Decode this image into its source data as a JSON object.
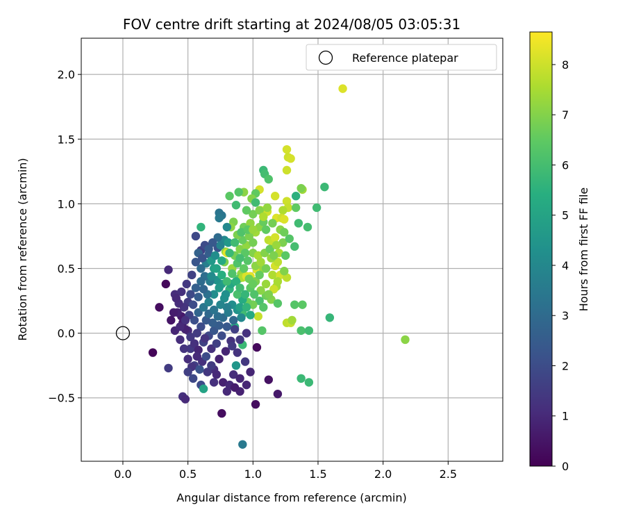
{
  "chart_data": {
    "type": "scatter",
    "title": "FOV centre drift starting at 2024/08/05 03:05:31",
    "xlabel": "Angular distance from reference (arcmin)",
    "ylabel": "Rotation from reference (arcmin)",
    "xlim": [
      -0.32,
      2.92
    ],
    "ylim": [
      -0.99,
      2.28
    ],
    "xticks": [
      "0.0",
      "0.5",
      "1.0",
      "1.5",
      "2.0",
      "2.5"
    ],
    "xtick_values": [
      0,
      0.5,
      1.0,
      1.5,
      2.0,
      2.5
    ],
    "yticks": [
      "−0.5",
      "0.0",
      "0.5",
      "1.0",
      "1.5",
      "2.0"
    ],
    "ytick_values": [
      -0.5,
      0,
      0.5,
      1.0,
      1.5,
      2.0
    ],
    "grid": true,
    "legend": {
      "position": "top-right",
      "label": "Reference platepar"
    },
    "reference_point": {
      "x": 0.0,
      "y": 0.0
    },
    "colorbar": {
      "label": "Hours from first FF file",
      "range": [
        0,
        8.65
      ],
      "ticks": [
        "0",
        "1",
        "2",
        "3",
        "4",
        "5",
        "6",
        "7",
        "8"
      ],
      "tick_values": [
        0,
        1,
        2,
        3,
        4,
        5,
        6,
        7,
        8
      ],
      "colormap": "viridis"
    },
    "points": [
      [
        0.23,
        -0.15,
        0.1
      ],
      [
        0.33,
        0.38,
        0.2
      ],
      [
        0.28,
        0.2,
        0.3
      ],
      [
        0.35,
        0.49,
        1.0
      ],
      [
        0.35,
        -0.27,
        1.5
      ],
      [
        0.46,
        -0.49,
        1.2
      ],
      [
        0.48,
        -0.51,
        1.0
      ],
      [
        0.4,
        0.3,
        1.1
      ],
      [
        0.45,
        0.13,
        0.6
      ],
      [
        0.5,
        0.02,
        1.0
      ],
      [
        0.52,
        -0.12,
        1.4
      ],
      [
        0.55,
        -0.25,
        1.6
      ],
      [
        0.6,
        -0.4,
        2.0
      ],
      [
        0.62,
        -0.43,
        5.0
      ],
      [
        0.7,
        -0.38,
        1.2
      ],
      [
        0.76,
        -0.62,
        0.3
      ],
      [
        0.8,
        -0.45,
        1.0
      ],
      [
        0.85,
        -0.32,
        1.1
      ],
      [
        0.87,
        -0.25,
        4.5
      ],
      [
        0.9,
        -0.45,
        0.8
      ],
      [
        0.92,
        -0.86,
        3.5
      ],
      [
        0.95,
        -0.4,
        0.9
      ],
      [
        1.02,
        -0.55,
        0.3
      ],
      [
        1.12,
        -0.36,
        0.4
      ],
      [
        1.19,
        -0.47,
        0.6
      ],
      [
        1.03,
        -0.11,
        0.2
      ],
      [
        0.92,
        -0.09,
        5.8
      ],
      [
        0.86,
        0.05,
        5.4
      ],
      [
        0.92,
        0.15,
        5.9
      ],
      [
        1.04,
        0.13,
        7.9
      ],
      [
        1.07,
        0.02,
        6.3
      ],
      [
        1.26,
        0.08,
        7.8
      ],
      [
        1.29,
        0.08,
        7.9
      ],
      [
        1.3,
        0.1,
        7.4
      ],
      [
        1.37,
        0.02,
        6.1
      ],
      [
        1.43,
        0.02,
        5.9
      ],
      [
        1.59,
        0.12,
        5.7
      ],
      [
        1.37,
        -0.35,
        5.8
      ],
      [
        1.43,
        -0.38,
        5.8
      ],
      [
        1.69,
        1.89,
        8.2
      ],
      [
        2.17,
        -0.05,
        7.1
      ],
      [
        1.55,
        1.13,
        5.8
      ],
      [
        1.49,
        0.97,
        5.9
      ],
      [
        1.32,
        0.67,
        6.0
      ],
      [
        1.38,
        0.22,
        6.4
      ],
      [
        1.32,
        0.22,
        6.3
      ],
      [
        1.26,
        1.42,
        8.1
      ],
      [
        1.27,
        1.36,
        8.0
      ],
      [
        1.29,
        1.35,
        8.1
      ],
      [
        1.26,
        1.26,
        8.0
      ],
      [
        1.38,
        1.11,
        7.4
      ],
      [
        1.37,
        1.12,
        6.9
      ],
      [
        1.33,
        1.06,
        5.5
      ],
      [
        1.26,
        1.02,
        8.0
      ],
      [
        1.27,
        0.97,
        7.9
      ],
      [
        1.23,
        0.95,
        7.6
      ],
      [
        1.18,
        0.89,
        8.2
      ],
      [
        1.22,
        0.89,
        8.0
      ],
      [
        1.24,
        0.88,
        8.2
      ],
      [
        1.17,
        1.06,
        8.1
      ],
      [
        1.08,
        1.26,
        5.8
      ],
      [
        1.09,
        1.23,
        6.0
      ],
      [
        1.05,
        1.11,
        8.1
      ],
      [
        1.06,
        0.95,
        8.2
      ],
      [
        1.11,
        0.94,
        8.0
      ],
      [
        1.02,
        1.08,
        6.5
      ],
      [
        0.99,
        1.04,
        7.0
      ],
      [
        0.93,
        1.09,
        7.1
      ],
      [
        0.89,
        1.09,
        6.3
      ],
      [
        0.87,
        0.99,
        5.9
      ],
      [
        0.82,
        1.06,
        6.4
      ],
      [
        0.85,
        0.86,
        6.9
      ],
      [
        0.83,
        0.82,
        7.1
      ],
      [
        0.76,
        0.91,
        3.4
      ],
      [
        0.74,
        0.93,
        3.3
      ],
      [
        0.74,
        0.89,
        3.5
      ],
      [
        0.6,
        0.82,
        5.6
      ],
      [
        0.56,
        0.75,
        1.9
      ],
      [
        0.6,
        0.64,
        1.6
      ],
      [
        0.58,
        0.62,
        2.7
      ],
      [
        0.66,
        0.61,
        2.6
      ],
      [
        0.73,
        0.66,
        2.2
      ],
      [
        0.78,
        0.72,
        4.0
      ],
      [
        0.8,
        0.82,
        4.0
      ],
      [
        0.79,
        0.63,
        7.2
      ],
      [
        0.8,
        0.62,
        8.3
      ],
      [
        0.78,
        0.55,
        6.9
      ],
      [
        0.84,
        0.5,
        7.3
      ],
      [
        0.91,
        0.46,
        7.2
      ],
      [
        0.89,
        0.42,
        6.5
      ],
      [
        0.92,
        0.43,
        7.6
      ],
      [
        0.95,
        0.44,
        8.2
      ],
      [
        0.98,
        0.44,
        8.3
      ],
      [
        1.03,
        0.49,
        8.2
      ],
      [
        1.08,
        0.5,
        7.3
      ],
      [
        1.15,
        0.45,
        7.6
      ],
      [
        1.17,
        0.52,
        8.1
      ],
      [
        1.19,
        0.55,
        7.8
      ],
      [
        1.21,
        0.45,
        8.1
      ],
      [
        1.19,
        0.4,
        7.5
      ],
      [
        1.26,
        0.43,
        7.8
      ],
      [
        1.24,
        0.48,
        7.0
      ],
      [
        1.18,
        0.36,
        7.5
      ],
      [
        1.16,
        0.34,
        8.0
      ],
      [
        1.14,
        0.26,
        7.0
      ],
      [
        1.19,
        0.23,
        6.3
      ],
      [
        1.1,
        0.29,
        6.7
      ],
      [
        1.05,
        0.25,
        6.1
      ],
      [
        1.0,
        0.22,
        6.8
      ],
      [
        0.96,
        0.24,
        6.7
      ],
      [
        0.92,
        0.26,
        5.3
      ],
      [
        0.88,
        0.3,
        6.1
      ],
      [
        0.82,
        0.34,
        5.6
      ],
      [
        0.76,
        0.38,
        4.8
      ],
      [
        0.72,
        0.41,
        4.4
      ],
      [
        0.67,
        0.4,
        3.6
      ],
      [
        0.63,
        0.44,
        3.1
      ],
      [
        0.6,
        0.4,
        3.0
      ],
      [
        0.56,
        0.35,
        2.6
      ],
      [
        0.52,
        0.3,
        1.9
      ],
      [
        0.5,
        0.24,
        1.5
      ],
      [
        0.47,
        0.2,
        1.3
      ],
      [
        0.43,
        0.23,
        1.1
      ],
      [
        0.42,
        0.16,
        0.8
      ],
      [
        0.46,
        0.08,
        0.7
      ],
      [
        0.48,
        0.03,
        0.8
      ],
      [
        0.52,
        -0.03,
        1.4
      ],
      [
        0.55,
        -0.08,
        1.2
      ],
      [
        0.58,
        -0.13,
        0.9
      ],
      [
        0.62,
        -0.07,
        1.7
      ],
      [
        0.66,
        -0.02,
        1.9
      ],
      [
        0.7,
        0.02,
        2.3
      ],
      [
        0.74,
        0.06,
        2.5
      ],
      [
        0.77,
        0.12,
        3.0
      ],
      [
        0.81,
        0.16,
        3.6
      ],
      [
        0.84,
        0.22,
        4.2
      ],
      [
        0.88,
        0.18,
        4.4
      ],
      [
        0.91,
        0.12,
        4.0
      ],
      [
        0.86,
        0.03,
        1.6
      ],
      [
        0.83,
        -0.06,
        1.3
      ],
      [
        0.79,
        -0.14,
        0.9
      ],
      [
        0.74,
        -0.2,
        0.8
      ],
      [
        0.7,
        -0.28,
        1.1
      ],
      [
        0.65,
        -0.3,
        1.4
      ],
      [
        0.61,
        -0.22,
        1.2
      ],
      [
        0.57,
        -0.18,
        1.0
      ],
      [
        0.53,
        -0.26,
        1.3
      ],
      [
        0.5,
        -0.2,
        1.1
      ],
      [
        0.55,
        0.1,
        2.1
      ],
      [
        0.58,
        0.16,
        2.8
      ],
      [
        0.62,
        0.2,
        3.4
      ],
      [
        0.66,
        0.24,
        3.8
      ],
      [
        0.7,
        0.3,
        4.2
      ],
      [
        0.74,
        0.35,
        4.6
      ],
      [
        0.78,
        0.27,
        4.3
      ],
      [
        0.8,
        0.2,
        3.7
      ],
      [
        0.73,
        0.13,
        3.1
      ],
      [
        0.69,
        0.08,
        2.6
      ],
      [
        0.64,
        0.1,
        2.4
      ],
      [
        0.6,
        0.05,
        2.0
      ],
      [
        0.57,
        0.0,
        1.5
      ],
      [
        0.63,
        -0.04,
        1.3
      ],
      [
        0.68,
        -0.12,
        1.2
      ],
      [
        0.72,
        -0.08,
        1.6
      ],
      [
        0.76,
        -0.02,
        2.0
      ],
      [
        0.8,
        0.05,
        2.4
      ],
      [
        0.85,
        0.1,
        2.9
      ],
      [
        0.9,
        0.2,
        4.9
      ],
      [
        0.94,
        0.3,
        5.7
      ],
      [
        0.98,
        0.35,
        6.4
      ],
      [
        1.02,
        0.4,
        6.9
      ],
      [
        1.06,
        0.33,
        7.1
      ],
      [
        1.1,
        0.38,
        7.3
      ],
      [
        1.12,
        0.3,
        6.9
      ],
      [
        1.08,
        0.2,
        6.3
      ],
      [
        1.01,
        0.3,
        6.2
      ],
      [
        0.97,
        0.42,
        6.7
      ],
      [
        0.93,
        0.5,
        6.5
      ],
      [
        0.88,
        0.54,
        6.2
      ],
      [
        0.86,
        0.6,
        6.8
      ],
      [
        0.9,
        0.65,
        7.0
      ],
      [
        0.95,
        0.68,
        7.2
      ],
      [
        1.0,
        0.62,
        7.0
      ],
      [
        1.04,
        0.6,
        7.5
      ],
      [
        1.0,
        0.7,
        6.8
      ],
      [
        1.02,
        0.78,
        7.4
      ],
      [
        1.05,
        0.82,
        7.1
      ],
      [
        1.08,
        0.86,
        6.6
      ],
      [
        1.12,
        0.72,
        7.8
      ],
      [
        1.15,
        0.7,
        7.9
      ],
      [
        1.17,
        0.74,
        8.1
      ],
      [
        1.2,
        0.62,
        7.5
      ],
      [
        1.23,
        0.7,
        6.9
      ],
      [
        1.25,
        0.6,
        6.4
      ],
      [
        1.28,
        0.73,
        6.3
      ],
      [
        1.14,
        0.58,
        7.3
      ],
      [
        1.1,
        0.5,
        6.8
      ],
      [
        1.05,
        0.45,
        6.6
      ],
      [
        0.96,
        0.56,
        6.3
      ],
      [
        0.92,
        0.72,
        6.6
      ],
      [
        0.88,
        0.76,
        6.9
      ],
      [
        0.93,
        0.82,
        6.7
      ],
      [
        0.98,
        0.85,
        7.2
      ],
      [
        1.0,
        0.92,
        6.8
      ],
      [
        1.05,
        0.95,
        7.0
      ],
      [
        1.11,
        0.97,
        7.2
      ],
      [
        1.08,
        0.9,
        7.6
      ],
      [
        1.35,
        0.85,
        5.9
      ],
      [
        1.42,
        0.82,
        6.0
      ],
      [
        1.33,
        0.97,
        6.5
      ],
      [
        1.12,
        1.19,
        6.2
      ],
      [
        1.02,
        1.01,
        5.9
      ],
      [
        0.95,
        0.95,
        6.5
      ],
      [
        0.82,
        0.62,
        5.8
      ],
      [
        0.76,
        0.56,
        5.2
      ],
      [
        0.7,
        0.5,
        4.9
      ],
      [
        0.68,
        0.44,
        4.1
      ],
      [
        0.64,
        0.54,
        3.7
      ],
      [
        0.6,
        0.5,
        3.0
      ],
      [
        0.56,
        0.55,
        2.3
      ],
      [
        0.53,
        0.45,
        1.7
      ],
      [
        0.49,
        0.38,
        1.4
      ],
      [
        0.45,
        0.32,
        1.2
      ],
      [
        0.41,
        0.27,
        1.0
      ],
      [
        0.39,
        0.16,
        0.7
      ],
      [
        0.37,
        0.1,
        0.5
      ],
      [
        0.4,
        0.02,
        0.9
      ],
      [
        0.44,
        -0.05,
        1.1
      ],
      [
        0.47,
        -0.12,
        1.3
      ],
      [
        0.5,
        -0.3,
        1.6
      ],
      [
        0.54,
        -0.35,
        1.9
      ],
      [
        0.59,
        -0.28,
        2.2
      ],
      [
        0.64,
        -0.18,
        2.0
      ],
      [
        0.68,
        -0.25,
        1.5
      ],
      [
        0.72,
        -0.32,
        1.0
      ],
      [
        0.77,
        -0.38,
        0.8
      ],
      [
        0.82,
        -0.4,
        1.0
      ],
      [
        0.86,
        -0.42,
        0.7
      ],
      [
        0.9,
        -0.35,
        0.9
      ],
      [
        0.88,
        -0.15,
        1.3
      ],
      [
        0.84,
        -0.1,
        1.5
      ],
      [
        0.9,
        -0.05,
        1.4
      ],
      [
        0.95,
        0.0,
        1.2
      ],
      [
        0.98,
        -0.3,
        0.9
      ],
      [
        0.94,
        -0.22,
        1.4
      ],
      [
        0.65,
        0.3,
        3.2
      ],
      [
        0.62,
        0.34,
        2.8
      ],
      [
        0.58,
        0.28,
        2.5
      ],
      [
        0.54,
        0.22,
        2.0
      ],
      [
        0.51,
        0.14,
        1.7
      ],
      [
        0.48,
        0.1,
        1.2
      ],
      [
        0.44,
        0.05,
        1.0
      ],
      [
        0.66,
        0.15,
        2.9
      ],
      [
        0.7,
        0.18,
        3.3
      ],
      [
        0.75,
        0.22,
        3.9
      ],
      [
        0.79,
        0.3,
        4.3
      ],
      [
        0.83,
        0.38,
        5.1
      ],
      [
        0.87,
        0.4,
        5.5
      ],
      [
        0.9,
        0.35,
        5.9
      ],
      [
        0.95,
        0.2,
        5.6
      ],
      [
        0.98,
        0.14,
        5.2
      ],
      [
        1.0,
        0.38,
        6.6
      ],
      [
        1.02,
        0.52,
        7.1
      ],
      [
        1.06,
        0.55,
        7.4
      ],
      [
        1.09,
        0.62,
        7.0
      ],
      [
        1.13,
        0.65,
        6.6
      ],
      [
        1.16,
        0.6,
        6.9
      ],
      [
        1.18,
        0.68,
        7.3
      ],
      [
        1.21,
        0.8,
        7.1
      ],
      [
        1.24,
        0.78,
        6.7
      ],
      [
        1.15,
        0.85,
        6.8
      ],
      [
        1.1,
        0.8,
        6.5
      ],
      [
        0.97,
        0.75,
        6.9
      ],
      [
        0.94,
        0.62,
        6.4
      ],
      [
        0.9,
        0.58,
        6.0
      ],
      [
        0.84,
        0.46,
        6.2
      ],
      [
        0.8,
        0.4,
        5.9
      ],
      [
        0.76,
        0.45,
        5.4
      ],
      [
        0.72,
        0.5,
        5.0
      ],
      [
        0.68,
        0.56,
        4.6
      ],
      [
        0.71,
        0.6,
        4.2
      ],
      [
        0.75,
        0.68,
        3.8
      ],
      [
        0.73,
        0.74,
        3.0
      ],
      [
        0.69,
        0.7,
        2.4
      ],
      [
        0.63,
        0.68,
        2.0
      ],
      [
        0.61,
        0.58,
        2.2
      ],
      [
        0.66,
        0.65,
        2.5
      ],
      [
        0.81,
        0.7,
        4.6
      ],
      [
        0.86,
        0.7,
        5.9
      ],
      [
        0.91,
        0.78,
        6.2
      ],
      [
        0.96,
        0.8,
        6.4
      ],
      [
        1.0,
        0.8,
        7.3
      ]
    ]
  }
}
